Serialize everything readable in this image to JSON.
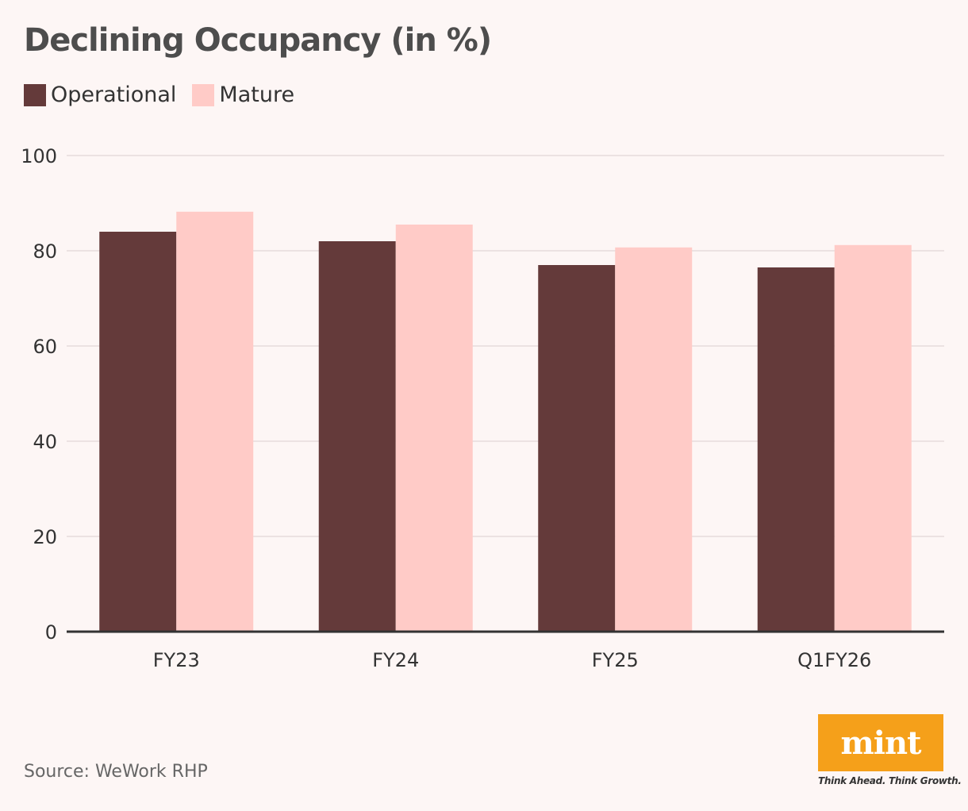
{
  "header": {
    "title": "Declining Occupancy (in %)"
  },
  "legend": {
    "items": [
      {
        "label": "Operational",
        "color": "#643a3a"
      },
      {
        "label": "Mature",
        "color": "#ffcbc7"
      }
    ]
  },
  "chart_data": {
    "type": "bar",
    "title": "Declining Occupancy (in %)",
    "categories": [
      "FY23",
      "FY24",
      "FY25",
      "Q1FY26"
    ],
    "series": [
      {
        "name": "Operational",
        "values": [
          84,
          82,
          77,
          76.5
        ],
        "color": "#643a3a"
      },
      {
        "name": "Mature",
        "values": [
          88.2,
          85.5,
          80.7,
          81.2
        ],
        "color": "#ffcbc7"
      }
    ],
    "xlabel": "",
    "ylabel": "",
    "ylim": [
      0,
      100
    ],
    "yticks": [
      0,
      20,
      40,
      60,
      80,
      100
    ],
    "grid": true,
    "legend_position": "top-left"
  },
  "footer": {
    "source": "Source: WeWork RHP",
    "logo_text": "mint",
    "tagline": "Think Ahead. Think Growth."
  }
}
